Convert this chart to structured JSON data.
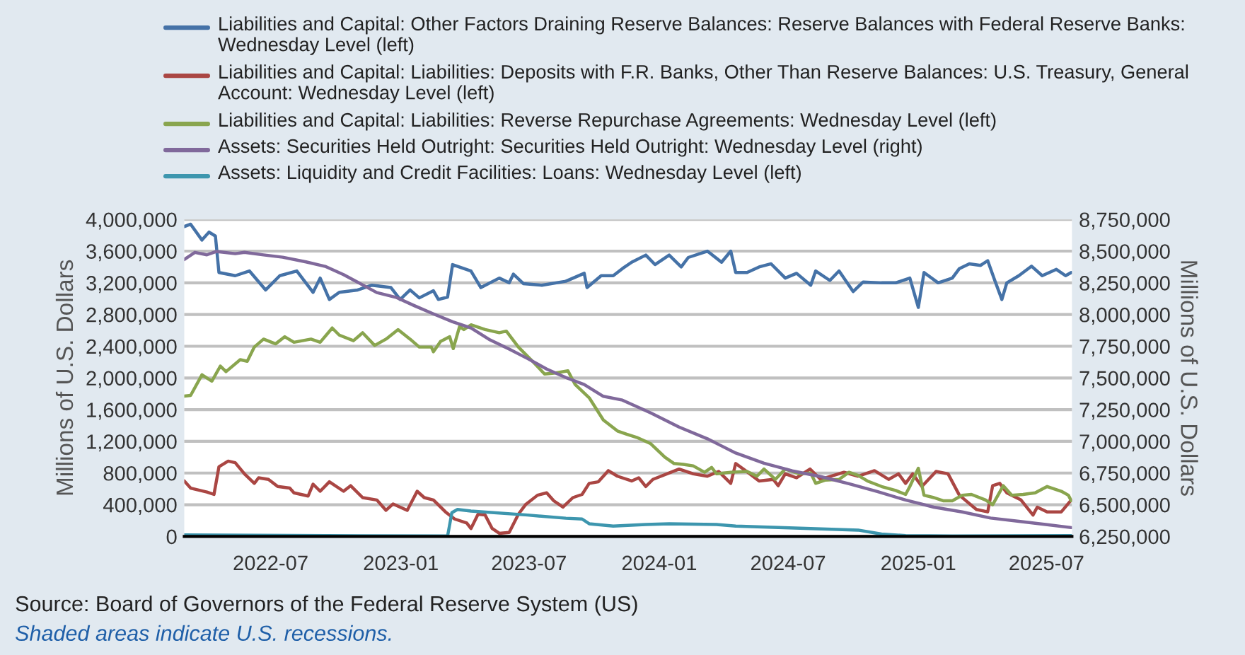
{
  "chart_data": {
    "type": "line",
    "ylabel": "Millions of U.S. Dollars",
    "y2label": "Millions of U.S. Dollars",
    "annotations": [
      "Source: Board of Governors of the Federal Reserve System (US)",
      "Shaded areas indicate U.S. recessions."
    ],
    "legend": "top",
    "grid": "y",
    "marker": "none",
    "line_style": "solid",
    "xlim": [
      "2022-03-01",
      "2025-08-06"
    ],
    "xticks": [
      "2022-07",
      "2023-01",
      "2023-07",
      "2024-01",
      "2024-07",
      "2025-01",
      "2025-07"
    ],
    "ylim": [
      0,
      4000000
    ],
    "yticks": [
      {
        "value": 0,
        "label": "0"
      },
      {
        "value": 400000,
        "label": "400,000"
      },
      {
        "value": 800000,
        "label": "800,000"
      },
      {
        "value": 1200000,
        "label": "1,200,000"
      },
      {
        "value": 1600000,
        "label": "1,600,000"
      },
      {
        "value": 2000000,
        "label": "2,000,000"
      },
      {
        "value": 2400000,
        "label": "2,400,000"
      },
      {
        "value": 2800000,
        "label": "2,800,000"
      },
      {
        "value": 3200000,
        "label": "3,200,000"
      },
      {
        "value": 3600000,
        "label": "3,600,000"
      },
      {
        "value": 4000000,
        "label": "4,000,000"
      }
    ],
    "y2lim": [
      6250000,
      8750000
    ],
    "y2ticks": [
      {
        "value": 6250000,
        "label": "6,250,000"
      },
      {
        "value": 6500000,
        "label": "6,500,000"
      },
      {
        "value": 6750000,
        "label": "6,750,000"
      },
      {
        "value": 7000000,
        "label": "7,000,000"
      },
      {
        "value": 7250000,
        "label": "7,250,000"
      },
      {
        "value": 7500000,
        "label": "7,500,000"
      },
      {
        "value": 7750000,
        "label": "7,750,000"
      },
      {
        "value": 8000000,
        "label": "8,000,000"
      },
      {
        "value": 8250000,
        "label": "8,250,000"
      },
      {
        "value": 8500000,
        "label": "8,500,000"
      },
      {
        "value": 8750000,
        "label": "8,750,000"
      }
    ],
    "series": [
      {
        "name": "Liabilities and Capital: Other Factors Draining Reserve Balances: Reserve Balances with Federal Reserve Banks: Wednesday Level (left)",
        "color": "#4572a7",
        "x": [
          "2022-03-01",
          "2022-03-10",
          "2022-03-26",
          "2022-04-05",
          "2022-04-14",
          "2022-04-19",
          "2022-05-12",
          "2022-06-01",
          "2022-06-24",
          "2022-07-14",
          "2022-08-07",
          "2022-08-30",
          "2022-09-09",
          "2022-09-22",
          "2022-10-06",
          "2022-11-01",
          "2022-11-21",
          "2022-12-18",
          "2022-12-31",
          "2023-01-14",
          "2023-01-27",
          "2023-02-16",
          "2023-02-23",
          "2023-03-08",
          "2023-03-15",
          "2023-04-10",
          "2023-04-24",
          "2023-05-20",
          "2023-06-03",
          "2023-06-09",
          "2023-06-23",
          "2023-07-19",
          "2023-08-22",
          "2023-09-17",
          "2023-09-21",
          "2023-10-11",
          "2023-10-28",
          "2023-11-10",
          "2023-11-23",
          "2023-12-13",
          "2023-12-26",
          "2024-01-15",
          "2024-02-01",
          "2024-02-11",
          "2024-03-09",
          "2024-03-29",
          "2024-04-11",
          "2024-04-18",
          "2024-05-04",
          "2024-05-21",
          "2024-06-07",
          "2024-06-27",
          "2024-07-13",
          "2024-08-02",
          "2024-08-09",
          "2024-08-29",
          "2024-09-11",
          "2024-10-01",
          "2024-10-15",
          "2024-11-10",
          "2024-11-30",
          "2024-12-20",
          "2025-01-01",
          "2025-01-09",
          "2025-01-29",
          "2025-02-18",
          "2025-02-28",
          "2025-03-14",
          "2025-03-30",
          "2025-04-09",
          "2025-04-19",
          "2025-04-29",
          "2025-05-06",
          "2025-05-23",
          "2025-06-10",
          "2025-06-25",
          "2025-07-15",
          "2025-07-28",
          "2025-08-05"
        ],
        "values": [
          3910000,
          3940000,
          3740000,
          3840000,
          3790000,
          3330000,
          3290000,
          3350000,
          3110000,
          3290000,
          3350000,
          3080000,
          3260000,
          2990000,
          3080000,
          3110000,
          3170000,
          3140000,
          2990000,
          3110000,
          3010000,
          3100000,
          2990000,
          3020000,
          3430000,
          3350000,
          3140000,
          3260000,
          3200000,
          3310000,
          3190000,
          3170000,
          3220000,
          3320000,
          3140000,
          3290000,
          3290000,
          3380000,
          3460000,
          3550000,
          3430000,
          3550000,
          3400000,
          3520000,
          3600000,
          3460000,
          3600000,
          3330000,
          3330000,
          3400000,
          3440000,
          3260000,
          3320000,
          3170000,
          3350000,
          3230000,
          3350000,
          3090000,
          3210000,
          3200000,
          3200000,
          3260000,
          2890000,
          3330000,
          3200000,
          3260000,
          3380000,
          3440000,
          3420000,
          3480000,
          3230000,
          2990000,
          3200000,
          3290000,
          3410000,
          3290000,
          3370000,
          3290000,
          3330000
        ]
      },
      {
        "name": "Liabilities and Capital: Liabilities: Deposits with F.R. Banks, Other Than Reserve Balances: U.S. Treasury, General Account: Wednesday Level (left)",
        "color": "#aa4643",
        "x": [
          "2022-03-01",
          "2022-03-10",
          "2022-04-02",
          "2022-04-12",
          "2022-04-19",
          "2022-05-02",
          "2022-05-12",
          "2022-05-25",
          "2022-06-08",
          "2022-06-14",
          "2022-06-28",
          "2022-07-11",
          "2022-07-28",
          "2022-08-03",
          "2022-08-23",
          "2022-08-30",
          "2022-09-09",
          "2022-09-22",
          "2022-10-12",
          "2022-10-22",
          "2022-11-08",
          "2022-11-28",
          "2022-12-11",
          "2022-12-21",
          "2023-01-10",
          "2023-01-24",
          "2023-02-03",
          "2023-02-16",
          "2023-03-05",
          "2023-03-18",
          "2023-04-04",
          "2023-04-10",
          "2023-04-20",
          "2023-04-30",
          "2023-05-10",
          "2023-05-20",
          "2023-06-03",
          "2023-06-16",
          "2023-06-26",
          "2023-07-13",
          "2023-07-26",
          "2023-08-05",
          "2023-08-18",
          "2023-09-01",
          "2023-09-14",
          "2023-09-24",
          "2023-10-07",
          "2023-10-21",
          "2023-11-03",
          "2023-11-23",
          "2023-12-03",
          "2023-12-13",
          "2023-12-23",
          "2024-01-29",
          "2024-02-18",
          "2024-03-09",
          "2024-03-25",
          "2024-04-11",
          "2024-04-18",
          "2024-05-08",
          "2024-05-21",
          "2024-06-10",
          "2024-06-17",
          "2024-06-27",
          "2024-07-13",
          "2024-08-01",
          "2024-08-16",
          "2024-09-18",
          "2024-10-08",
          "2024-10-31",
          "2024-11-20",
          "2024-12-04",
          "2024-12-14",
          "2024-12-24",
          "2025-01-06",
          "2025-01-26",
          "2025-02-12",
          "2025-02-28",
          "2025-03-24",
          "2025-04-09",
          "2025-04-16",
          "2025-04-26",
          "2025-05-06",
          "2025-05-26",
          "2025-06-12",
          "2025-06-18",
          "2025-07-02",
          "2025-07-22",
          "2025-08-05"
        ],
        "values": [
          700000,
          610000,
          560000,
          530000,
          880000,
          950000,
          930000,
          790000,
          670000,
          740000,
          720000,
          630000,
          610000,
          550000,
          510000,
          660000,
          570000,
          690000,
          570000,
          640000,
          490000,
          460000,
          330000,
          410000,
          330000,
          570000,
          490000,
          460000,
          310000,
          220000,
          170000,
          100000,
          280000,
          270000,
          100000,
          40000,
          50000,
          280000,
          400000,
          520000,
          550000,
          450000,
          370000,
          490000,
          530000,
          670000,
          690000,
          830000,
          760000,
          700000,
          740000,
          630000,
          720000,
          850000,
          790000,
          760000,
          820000,
          670000,
          920000,
          790000,
          700000,
          720000,
          640000,
          790000,
          740000,
          850000,
          720000,
          810000,
          760000,
          830000,
          720000,
          790000,
          670000,
          790000,
          630000,
          820000,
          790000,
          520000,
          340000,
          310000,
          640000,
          670000,
          550000,
          460000,
          270000,
          370000,
          310000,
          310000,
          460000
        ]
      },
      {
        "name": "Liabilities and Capital: Liabilities: Reverse Repurchase Agreements: Wednesday Level (left)",
        "color": "#89a54e",
        "x": [
          "2022-03-01",
          "2022-03-10",
          "2022-03-26",
          "2022-04-09",
          "2022-04-21",
          "2022-04-29",
          "2022-05-19",
          "2022-05-29",
          "2022-06-08",
          "2022-06-21",
          "2022-07-08",
          "2022-07-21",
          "2022-08-03",
          "2022-08-27",
          "2022-09-09",
          "2022-09-26",
          "2022-10-06",
          "2022-10-26",
          "2022-11-08",
          "2022-11-25",
          "2022-12-11",
          "2022-12-28",
          "2023-01-14",
          "2023-01-27",
          "2023-02-13",
          "2023-02-16",
          "2023-02-26",
          "2023-03-11",
          "2023-03-16",
          "2023-03-25",
          "2023-03-31",
          "2023-04-10",
          "2023-04-30",
          "2023-05-20",
          "2023-05-30",
          "2023-06-16",
          "2023-07-06",
          "2023-07-23",
          "2023-08-05",
          "2023-08-25",
          "2023-09-04",
          "2023-09-24",
          "2023-10-14",
          "2023-11-03",
          "2023-11-16",
          "2023-11-30",
          "2023-12-20",
          "2024-01-09",
          "2024-01-22",
          "2024-02-04",
          "2024-02-18",
          "2024-03-05",
          "2024-03-15",
          "2024-03-22",
          "2024-04-11",
          "2024-05-04",
          "2024-05-18",
          "2024-05-28",
          "2024-06-13",
          "2024-06-27",
          "2024-07-17",
          "2024-08-02",
          "2024-08-09",
          "2024-08-22",
          "2024-09-11",
          "2024-09-25",
          "2024-10-08",
          "2024-10-21",
          "2024-11-10",
          "2024-11-30",
          "2024-12-14",
          "2024-12-20",
          "2025-01-01",
          "2025-01-09",
          "2025-01-23",
          "2025-02-05",
          "2025-02-18",
          "2025-03-04",
          "2025-03-17",
          "2025-04-06",
          "2025-04-16",
          "2025-05-01",
          "2025-05-13",
          "2025-05-29",
          "2025-06-15",
          "2025-07-02",
          "2025-07-22",
          "2025-08-01",
          "2025-08-05"
        ],
        "values": [
          1770000,
          1780000,
          2040000,
          1960000,
          2150000,
          2080000,
          2230000,
          2210000,
          2390000,
          2490000,
          2430000,
          2520000,
          2450000,
          2490000,
          2450000,
          2630000,
          2540000,
          2470000,
          2570000,
          2410000,
          2490000,
          2610000,
          2490000,
          2390000,
          2390000,
          2330000,
          2460000,
          2520000,
          2370000,
          2650000,
          2610000,
          2670000,
          2610000,
          2570000,
          2590000,
          2390000,
          2210000,
          2050000,
          2060000,
          2090000,
          1920000,
          1750000,
          1470000,
          1330000,
          1290000,
          1250000,
          1170000,
          1000000,
          920000,
          910000,
          890000,
          810000,
          870000,
          790000,
          810000,
          820000,
          760000,
          850000,
          720000,
          850000,
          790000,
          800000,
          670000,
          710000,
          720000,
          810000,
          770000,
          700000,
          630000,
          580000,
          530000,
          630000,
          860000,
          520000,
          490000,
          450000,
          450000,
          520000,
          530000,
          460000,
          400000,
          640000,
          520000,
          530000,
          550000,
          630000,
          570000,
          520000,
          450000
        ]
      },
      {
        "name": "Assets: Securities Held Outright: Securities Held Outright: Wednesday Level (right)",
        "color": "#80699b",
        "axis": "y2",
        "x": [
          "2022-03-01",
          "2022-03-16",
          "2022-04-02",
          "2022-04-15",
          "2022-05-12",
          "2022-05-25",
          "2022-06-21",
          "2022-07-18",
          "2022-08-20",
          "2022-09-16",
          "2022-10-12",
          "2022-11-01",
          "2022-11-28",
          "2022-12-25",
          "2023-01-20",
          "2023-02-16",
          "2023-03-15",
          "2023-04-10",
          "2023-05-07",
          "2023-06-03",
          "2023-06-29",
          "2023-07-26",
          "2023-08-22",
          "2023-09-17",
          "2023-10-14",
          "2023-11-10",
          "2023-12-20",
          "2024-01-29",
          "2024-03-09",
          "2024-04-18",
          "2024-05-28",
          "2024-07-07",
          "2024-08-16",
          "2024-09-25",
          "2024-11-04",
          "2024-12-14",
          "2025-01-23",
          "2025-03-04",
          "2025-04-13",
          "2025-05-23",
          "2025-07-02",
          "2025-08-05"
        ],
        "values": [
          8434000,
          8490000,
          8471000,
          8497000,
          8480000,
          8490000,
          8470000,
          8452000,
          8415000,
          8380000,
          8315000,
          8255000,
          8173000,
          8136000,
          8070000,
          8005000,
          7943000,
          7894000,
          7800000,
          7727000,
          7653000,
          7570000,
          7503000,
          7448000,
          7355000,
          7325000,
          7224000,
          7113000,
          7020000,
          6908000,
          6827000,
          6767000,
          6722000,
          6666000,
          6604000,
          6537000,
          6481000,
          6443000,
          6395000,
          6369000,
          6343000,
          6320000
        ]
      },
      {
        "name": "Assets: Liquidity and Credit Facilities: Loans: Wednesday Level (left)",
        "color": "#3d96ae",
        "x": [
          "2022-03-01",
          "2022-09-17",
          "2023-03-08",
          "2023-03-14",
          "2023-03-22",
          "2023-04-10",
          "2023-06-29",
          "2023-08-22",
          "2023-09-14",
          "2023-09-24",
          "2023-10-28",
          "2023-12-13",
          "2024-01-15",
          "2024-03-22",
          "2024-04-18",
          "2024-08-02",
          "2024-10-08",
          "2024-11-10",
          "2024-12-14",
          "2025-02-18",
          "2025-08-05"
        ],
        "values": [
          20000,
          10000,
          5000,
          300000,
          340000,
          320000,
          270000,
          230000,
          220000,
          160000,
          130000,
          150000,
          160000,
          150000,
          130000,
          100000,
          80000,
          30000,
          10000,
          5000,
          10000
        ]
      }
    ]
  }
}
